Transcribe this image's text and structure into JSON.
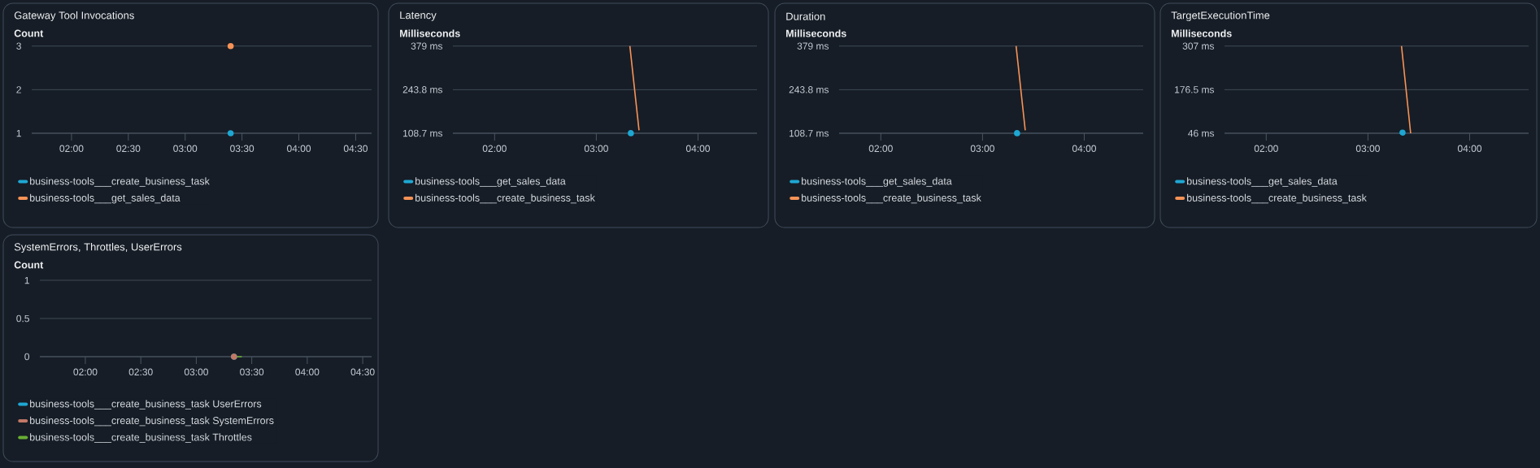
{
  "chart_data": [
    {
      "type": "line",
      "title": "Gateway Tool Invocations",
      "ylabel": "Count",
      "xlim": [
        1.65,
        4.64
      ],
      "ylim": [
        1,
        3
      ],
      "xticks": [
        {
          "value": 2,
          "label": "02:00"
        },
        {
          "value": 2.5,
          "label": "02:30"
        },
        {
          "value": 3,
          "label": "03:00"
        },
        {
          "value": 3.5,
          "label": "03:30"
        },
        {
          "value": 4,
          "label": "04:00"
        },
        {
          "value": 4.5,
          "label": "04:30"
        }
      ],
      "yticks": [
        1,
        2,
        3
      ],
      "grid": "y",
      "legend": "bottom",
      "series": [
        {
          "name": "business-tools___create_business_task",
          "color": "#1ea7d3",
          "x": [
            3.4
          ],
          "values": [
            1
          ],
          "marker": "circle"
        },
        {
          "name": "business-tools___get_sales_data",
          "color": "#f89256",
          "x": [
            3.4
          ],
          "values": [
            3
          ],
          "marker": "circle"
        }
      ]
    },
    {
      "type": "line",
      "title": "Latency",
      "ylabel": "Milliseconds",
      "xlim": [
        1.59,
        4.58
      ],
      "ylim": [
        108.7,
        379
      ],
      "xticks": [
        {
          "value": 2,
          "label": "02:00"
        },
        {
          "value": 3,
          "label": "03:00"
        },
        {
          "value": 4,
          "label": "04:00"
        }
      ],
      "yticks": [
        {
          "value": 108.7,
          "label": "108.7 ms"
        },
        {
          "value": 243.8,
          "label": "243.8 ms"
        },
        {
          "value": 379,
          "label": "379 ms"
        }
      ],
      "grid": "y",
      "legend": "bottom",
      "series": [
        {
          "name": "business-tools___get_sales_data",
          "color": "#1ea7d3",
          "x": [
            3.34
          ],
          "values": [
            109
          ],
          "marker": "circle"
        },
        {
          "name": "business-tools___create_business_task",
          "color": "#f89256",
          "x": [
            3.33,
            3.42
          ],
          "values": [
            379,
            118
          ],
          "marker": "none"
        }
      ]
    },
    {
      "type": "line",
      "title": "Duration",
      "ylabel": "Milliseconds",
      "xlim": [
        1.59,
        4.58
      ],
      "ylim": [
        108.7,
        379
      ],
      "xticks": [
        {
          "value": 2,
          "label": "02:00"
        },
        {
          "value": 3,
          "label": "03:00"
        },
        {
          "value": 4,
          "label": "04:00"
        }
      ],
      "yticks": [
        {
          "value": 108.7,
          "label": "108.7 ms"
        },
        {
          "value": 243.8,
          "label": "243.8 ms"
        },
        {
          "value": 379,
          "label": "379 ms"
        }
      ],
      "grid": "y",
      "legend": "bottom",
      "series": [
        {
          "name": "business-tools___get_sales_data",
          "color": "#1ea7d3",
          "x": [
            3.34
          ],
          "values": [
            109
          ],
          "marker": "circle"
        },
        {
          "name": "business-tools___create_business_task",
          "color": "#f89256",
          "x": [
            3.33,
            3.42
          ],
          "values": [
            379,
            118
          ],
          "marker": "none"
        }
      ]
    },
    {
      "type": "line",
      "title": "TargetExecutionTime",
      "ylabel": "Milliseconds",
      "xlim": [
        1.59,
        4.58
      ],
      "ylim": [
        46,
        307
      ],
      "xticks": [
        {
          "value": 2,
          "label": "02:00"
        },
        {
          "value": 3,
          "label": "03:00"
        },
        {
          "value": 4,
          "label": "04:00"
        }
      ],
      "yticks": [
        {
          "value": 46,
          "label": "46 ms"
        },
        {
          "value": 176.5,
          "label": "176.5 ms"
        },
        {
          "value": 307,
          "label": "307 ms"
        }
      ],
      "grid": "y",
      "legend": "bottom",
      "series": [
        {
          "name": "business-tools___get_sales_data",
          "color": "#1ea7d3",
          "x": [
            3.34
          ],
          "values": [
            48
          ],
          "marker": "circle"
        },
        {
          "name": "business-tools___create_business_task",
          "color": "#f89256",
          "x": [
            3.33,
            3.42
          ],
          "values": [
            307,
            46
          ],
          "marker": "none"
        }
      ]
    },
    {
      "type": "line",
      "title": "SystemErrors, Throttles, UserErrors",
      "ylabel": "Count",
      "xlim": [
        1.59,
        4.58
      ],
      "ylim": [
        0,
        1
      ],
      "xticks": [
        {
          "value": 2,
          "label": "02:00"
        },
        {
          "value": 2.5,
          "label": "02:30"
        },
        {
          "value": 3,
          "label": "03:00"
        },
        {
          "value": 3.5,
          "label": "03:30"
        },
        {
          "value": 4,
          "label": "04:00"
        },
        {
          "value": 4.5,
          "label": "04:30"
        }
      ],
      "yticks": [
        0,
        0.5,
        1
      ],
      "grid": "y",
      "legend": "bottom",
      "series": [
        {
          "name": "business-tools___create_business_task UserErrors",
          "color": "#1ea7d3",
          "x": [
            3.34
          ],
          "values": [
            0
          ],
          "marker": "circle"
        },
        {
          "name": "business-tools___create_business_task SystemErrors",
          "color": "#c27866",
          "x": [
            3.34
          ],
          "values": [
            0
          ],
          "marker": "circle"
        },
        {
          "name": "business-tools___create_business_task Throttles",
          "color": "#69ae34",
          "x": [
            3.34,
            3.41
          ],
          "values": [
            0,
            0
          ],
          "marker": "none"
        }
      ]
    }
  ]
}
